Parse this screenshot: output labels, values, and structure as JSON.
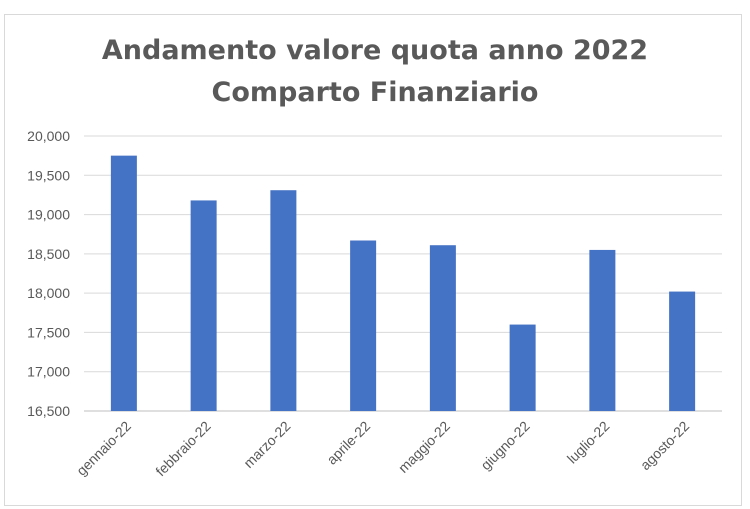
{
  "chart_data": {
    "type": "bar",
    "title_line1": "Andamento valore quota anno 2022",
    "title_line2": "Comparto Finanziario",
    "categories": [
      "gennaio-22",
      "febbraio-22",
      "marzo-22",
      "aprile-22",
      "maggio-22",
      "giugno-22",
      "luglio-22",
      "agosto-22"
    ],
    "values": [
      19.75,
      19.18,
      19.31,
      18.67,
      18.61,
      17.6,
      18.55,
      18.02
    ],
    "ylim": [
      16.5,
      20.0
    ],
    "yticks": [
      16.5,
      17.0,
      17.5,
      18.0,
      18.5,
      19.0,
      19.5,
      20.0
    ],
    "ytick_labels": [
      "16,500",
      "17,000",
      "17,500",
      "18,000",
      "18,500",
      "19,000",
      "19,500",
      "20,000"
    ],
    "xlabel": "",
    "ylabel": "",
    "grid": true,
    "bar_color": "#4472c4",
    "grid_color": "#d9d9d9"
  }
}
